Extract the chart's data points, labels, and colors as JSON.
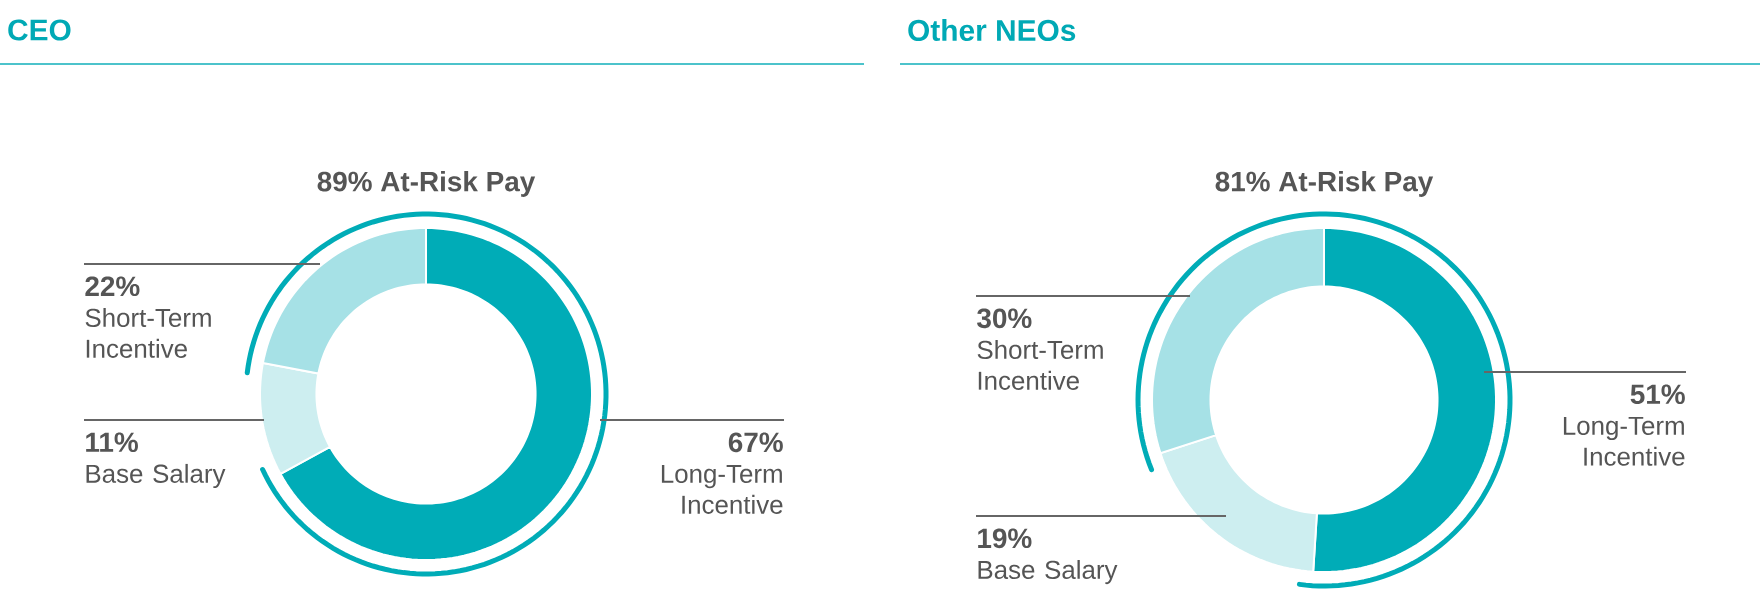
{
  "chart_data": [
    {
      "type": "donut",
      "title": "CEO",
      "categories": [
        "Long-Term Incentive",
        "Base Salary",
        "Short-Term Incentive"
      ],
      "values": [
        67,
        11,
        22
      ],
      "value_labels": [
        "67%",
        "11%",
        "22%"
      ],
      "colors": [
        "#00acb7",
        "#cdeef0",
        "#a6e1e6"
      ],
      "annotations": [
        "89% At-Risk Pay"
      ]
    },
    {
      "type": "donut",
      "title": "Other NEOs",
      "categories": [
        "Long-Term Incentive",
        "Base Salary",
        "Short-Term Incentive"
      ],
      "values": [
        51,
        19,
        30
      ],
      "value_labels": [
        "51%",
        "19%",
        "30%"
      ],
      "colors": [
        "#00acb7",
        "#cdeef0",
        "#a6e1e6"
      ],
      "annotations": [
        "81% At-Risk Pay"
      ]
    }
  ]
}
